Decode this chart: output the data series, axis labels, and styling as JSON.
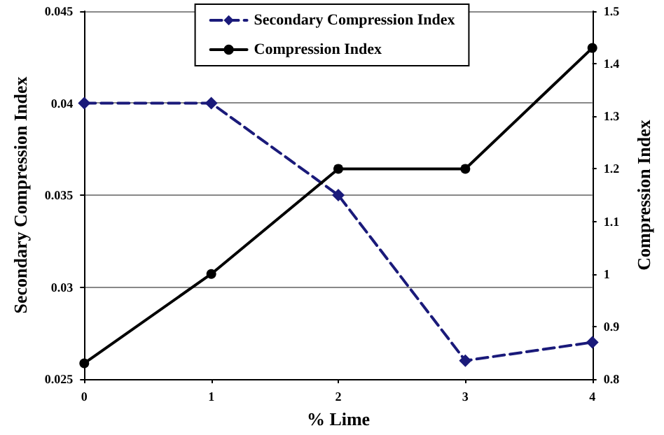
{
  "chart_data": {
    "type": "line",
    "xlabel": "% Lime",
    "ylabel": "Secondary Compression Index",
    "y2label": "Compression Index",
    "x": [
      0,
      1,
      2,
      3,
      4
    ],
    "xlim": [
      0,
      4
    ],
    "xticks": [
      0,
      1,
      2,
      3,
      4
    ],
    "ylim": [
      0.025,
      0.045
    ],
    "yticks": [
      0.025,
      0.03,
      0.035,
      0.04,
      0.045
    ],
    "y2lim": [
      0.8,
      1.5
    ],
    "y2ticks": [
      0.8,
      0.9,
      1,
      1.1,
      1.2,
      1.3,
      1.4,
      1.5
    ],
    "grid": "y",
    "legend": "top",
    "series": [
      {
        "name": "Secondary Compression Index",
        "color": "#1a1a7a",
        "values": [
          0.04,
          0.04,
          0.035,
          0.026,
          0.027
        ],
        "marker": "diamond",
        "line_style": "dashed"
      },
      {
        "name": "Compression Index",
        "color": "#000000",
        "values": [
          0.83,
          1.0,
          1.2,
          1.2,
          1.43
        ],
        "axis": "y2",
        "marker": "circle",
        "line_style": "solid"
      }
    ]
  }
}
